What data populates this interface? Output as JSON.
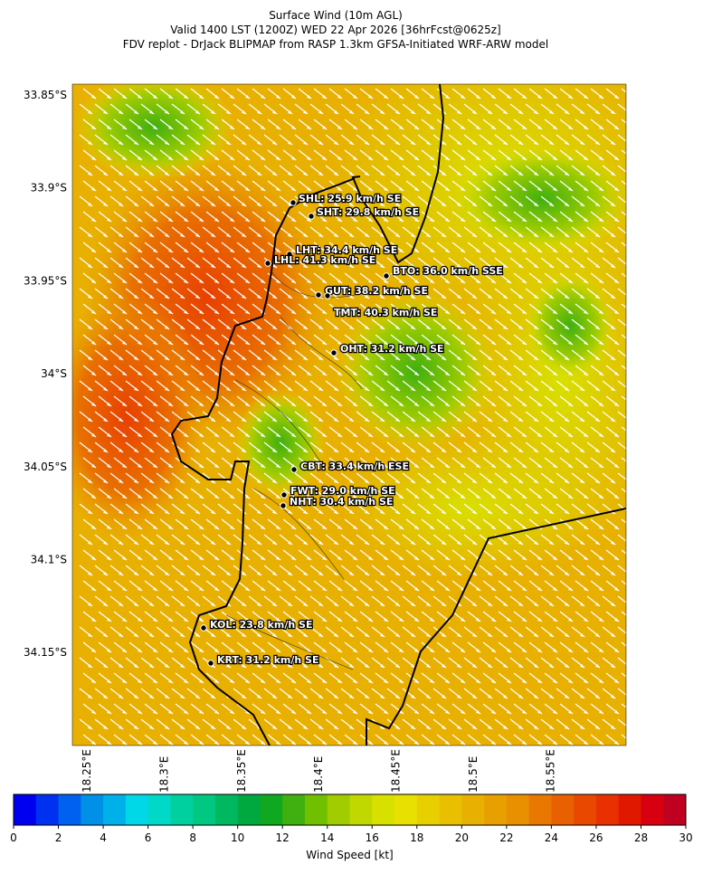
{
  "title": [
    "Surface Wind (10m AGL)",
    "Valid 1400 LST (1200Z) WED 22 Apr 2026 [36hrFcst@0625z]",
    "FDV replot - DrJack BLIPMAP from RASP 1.3km GFSA-Initiated WRF-ARW model"
  ],
  "lat_labels": [
    "33.85°S",
    "33.9°S",
    "33.95°S",
    "34°S",
    "34.05°S",
    "34.1°S",
    "34.15°S"
  ],
  "lon_labels": [
    "18.25°E",
    "18.3°E",
    "18.35°E",
    "18.4°E",
    "18.45°E",
    "18.5°E",
    "18.55°E"
  ],
  "stations": [
    "SHL: 25.9 km/h SE",
    "SHT: 29.8 km/h SE",
    "LHT: 34.4 km/h SE",
    "LHL: 41.3 km/h SE",
    "BTO: 36.0 km/h SSE",
    "GUT: 38.2 km/h SE",
    "TMT: 40.3 km/h SE",
    "OHT: 31.2 km/h SE",
    "CBT: 33.4 km/h ESE",
    "FWT: 29.0 km/h SE",
    "NHT: 30.4 km/h SE",
    "KOL: 23.8 km/h SE",
    "KRT: 31.2 km/h SE"
  ],
  "colorbar": {
    "label": "Wind Speed [kt]",
    "lim": [
      0,
      30
    ],
    "ticks": [
      0,
      2,
      4,
      6,
      8,
      10,
      12,
      14,
      16,
      18,
      20,
      22,
      24,
      26,
      28,
      30
    ],
    "colors": [
      "#0000f0",
      "#0030f0",
      "#0060f0",
      "#0090e8",
      "#00b0e8",
      "#00d8e8",
      "#00d8c8",
      "#00d0a0",
      "#00c880",
      "#00b860",
      "#00a840",
      "#10a820",
      "#40b010",
      "#70c000",
      "#a0cc00",
      "#c0d800",
      "#d8e000",
      "#e8e000",
      "#e8d000",
      "#e8c000",
      "#e8b000",
      "#e8a000",
      "#e89000",
      "#e87800",
      "#e86000",
      "#e84800",
      "#e83000",
      "#e01800",
      "#d80010",
      "#c00020"
    ]
  }
}
